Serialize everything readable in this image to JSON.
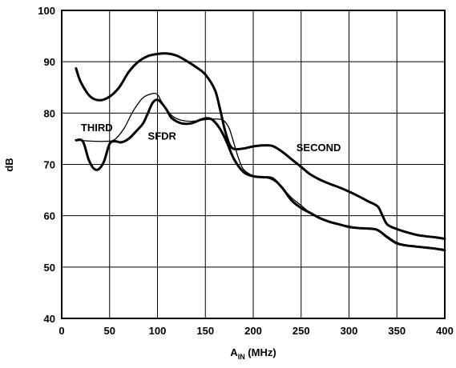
{
  "chart_data": {
    "type": "line",
    "title": "",
    "xlabel": {
      "main": "A",
      "sub": "IN",
      "suffix": " (MHz)"
    },
    "ylabel": "dB",
    "xlim": [
      0,
      400
    ],
    "ylim": [
      40,
      100
    ],
    "xticks": [
      "0",
      "50",
      "100",
      "150",
      "200",
      "250",
      "300",
      "350",
      "400"
    ],
    "yticks": [
      "40",
      "50",
      "60",
      "70",
      "80",
      "90",
      "100"
    ],
    "grid": true,
    "series": [
      {
        "name": "SECOND",
        "weight": "bold",
        "points": [
          [
            15,
            88.7
          ],
          [
            20,
            86
          ],
          [
            30,
            83.2
          ],
          [
            40,
            82.5
          ],
          [
            50,
            83.2
          ],
          [
            60,
            85
          ],
          [
            70,
            88
          ],
          [
            80,
            90
          ],
          [
            90,
            91.1
          ],
          [
            100,
            91.5
          ],
          [
            110,
            91.6
          ],
          [
            120,
            91.2
          ],
          [
            130,
            90.2
          ],
          [
            140,
            89
          ],
          [
            150,
            87.5
          ],
          [
            160,
            84.5
          ],
          [
            165,
            81
          ],
          [
            170,
            77
          ],
          [
            175,
            74
          ],
          [
            180,
            73
          ],
          [
            190,
            73.1
          ],
          [
            200,
            73.5
          ],
          [
            210,
            73.7
          ],
          [
            220,
            73.6
          ],
          [
            230,
            72.5
          ],
          [
            240,
            71
          ],
          [
            250,
            69.5
          ],
          [
            260,
            68
          ],
          [
            270,
            67
          ],
          [
            280,
            66.2
          ],
          [
            290,
            65.5
          ],
          [
            300,
            64.7
          ],
          [
            310,
            63.8
          ],
          [
            320,
            62.8
          ],
          [
            330,
            61.8
          ],
          [
            335,
            60
          ],
          [
            340,
            58.3
          ],
          [
            350,
            57.4
          ],
          [
            360,
            56.8
          ],
          [
            370,
            56.3
          ],
          [
            380,
            56
          ],
          [
            390,
            55.8
          ],
          [
            400,
            55.5
          ]
        ]
      },
      {
        "name": "THIRD",
        "weight": "thin",
        "points": [
          [
            15,
            74.7
          ],
          [
            25,
            74.6
          ],
          [
            35,
            74.5
          ],
          [
            45,
            74.5
          ],
          [
            55,
            74.8
          ],
          [
            65,
            77
          ],
          [
            75,
            80.5
          ],
          [
            85,
            83
          ],
          [
            95,
            83.8
          ],
          [
            100,
            83.6
          ],
          [
            105,
            82
          ],
          [
            115,
            79.5
          ],
          [
            125,
            78.6
          ],
          [
            135,
            78.4
          ],
          [
            145,
            78.6
          ],
          [
            155,
            78.8
          ],
          [
            165,
            78.8
          ],
          [
            170,
            78.4
          ],
          [
            175,
            77
          ],
          [
            180,
            74
          ],
          [
            185,
            71
          ],
          [
            190,
            69
          ],
          [
            200,
            67.8
          ],
          [
            210,
            67.5
          ],
          [
            220,
            67
          ],
          [
            230,
            65.5
          ],
          [
            240,
            63.5
          ],
          [
            250,
            62
          ],
          [
            260,
            60.5
          ],
          [
            270,
            59.5
          ],
          [
            280,
            58.8
          ],
          [
            290,
            58.3
          ],
          [
            300,
            58
          ],
          [
            310,
            57.6
          ],
          [
            320,
            57.5
          ],
          [
            330,
            57.3
          ],
          [
            340,
            56
          ],
          [
            350,
            54.8
          ],
          [
            360,
            54.3
          ],
          [
            370,
            54
          ],
          [
            380,
            53.8
          ],
          [
            390,
            53.6
          ],
          [
            400,
            53.4
          ]
        ]
      },
      {
        "name": "SFDR",
        "weight": "bold",
        "points": [
          [
            15,
            74.7
          ],
          [
            22,
            74.5
          ],
          [
            28,
            71
          ],
          [
            33,
            69.3
          ],
          [
            38,
            69
          ],
          [
            44,
            70.5
          ],
          [
            50,
            74
          ],
          [
            56,
            74.5
          ],
          [
            62,
            74.3
          ],
          [
            70,
            75
          ],
          [
            78,
            76.5
          ],
          [
            85,
            78
          ],
          [
            90,
            80
          ],
          [
            95,
            82
          ],
          [
            100,
            82.6
          ],
          [
            105,
            81.8
          ],
          [
            110,
            80.5
          ],
          [
            115,
            79
          ],
          [
            125,
            78
          ],
          [
            135,
            78
          ],
          [
            145,
            78.7
          ],
          [
            152,
            79
          ],
          [
            158,
            78.6
          ],
          [
            165,
            77
          ],
          [
            172,
            74.5
          ],
          [
            180,
            71
          ],
          [
            190,
            68.5
          ],
          [
            200,
            67.7
          ],
          [
            210,
            67.5
          ],
          [
            220,
            67.3
          ],
          [
            230,
            65.5
          ],
          [
            240,
            63
          ],
          [
            250,
            61.5
          ],
          [
            260,
            60.5
          ],
          [
            270,
            59.5
          ],
          [
            280,
            58.8
          ],
          [
            290,
            58.3
          ],
          [
            300,
            57.8
          ],
          [
            310,
            57.6
          ],
          [
            320,
            57.5
          ],
          [
            330,
            57.2
          ],
          [
            340,
            55.8
          ],
          [
            350,
            54.6
          ],
          [
            360,
            54.2
          ],
          [
            370,
            54
          ],
          [
            380,
            53.8
          ],
          [
            390,
            53.6
          ],
          [
            400,
            53.3
          ]
        ]
      }
    ],
    "annotations": [
      {
        "text": "THIRD",
        "x": 20,
        "y": 76.5
      },
      {
        "text": "SFDR",
        "x": 90,
        "y": 74.8
      },
      {
        "text": "SECOND",
        "x": 245,
        "y": 72.6
      }
    ]
  }
}
